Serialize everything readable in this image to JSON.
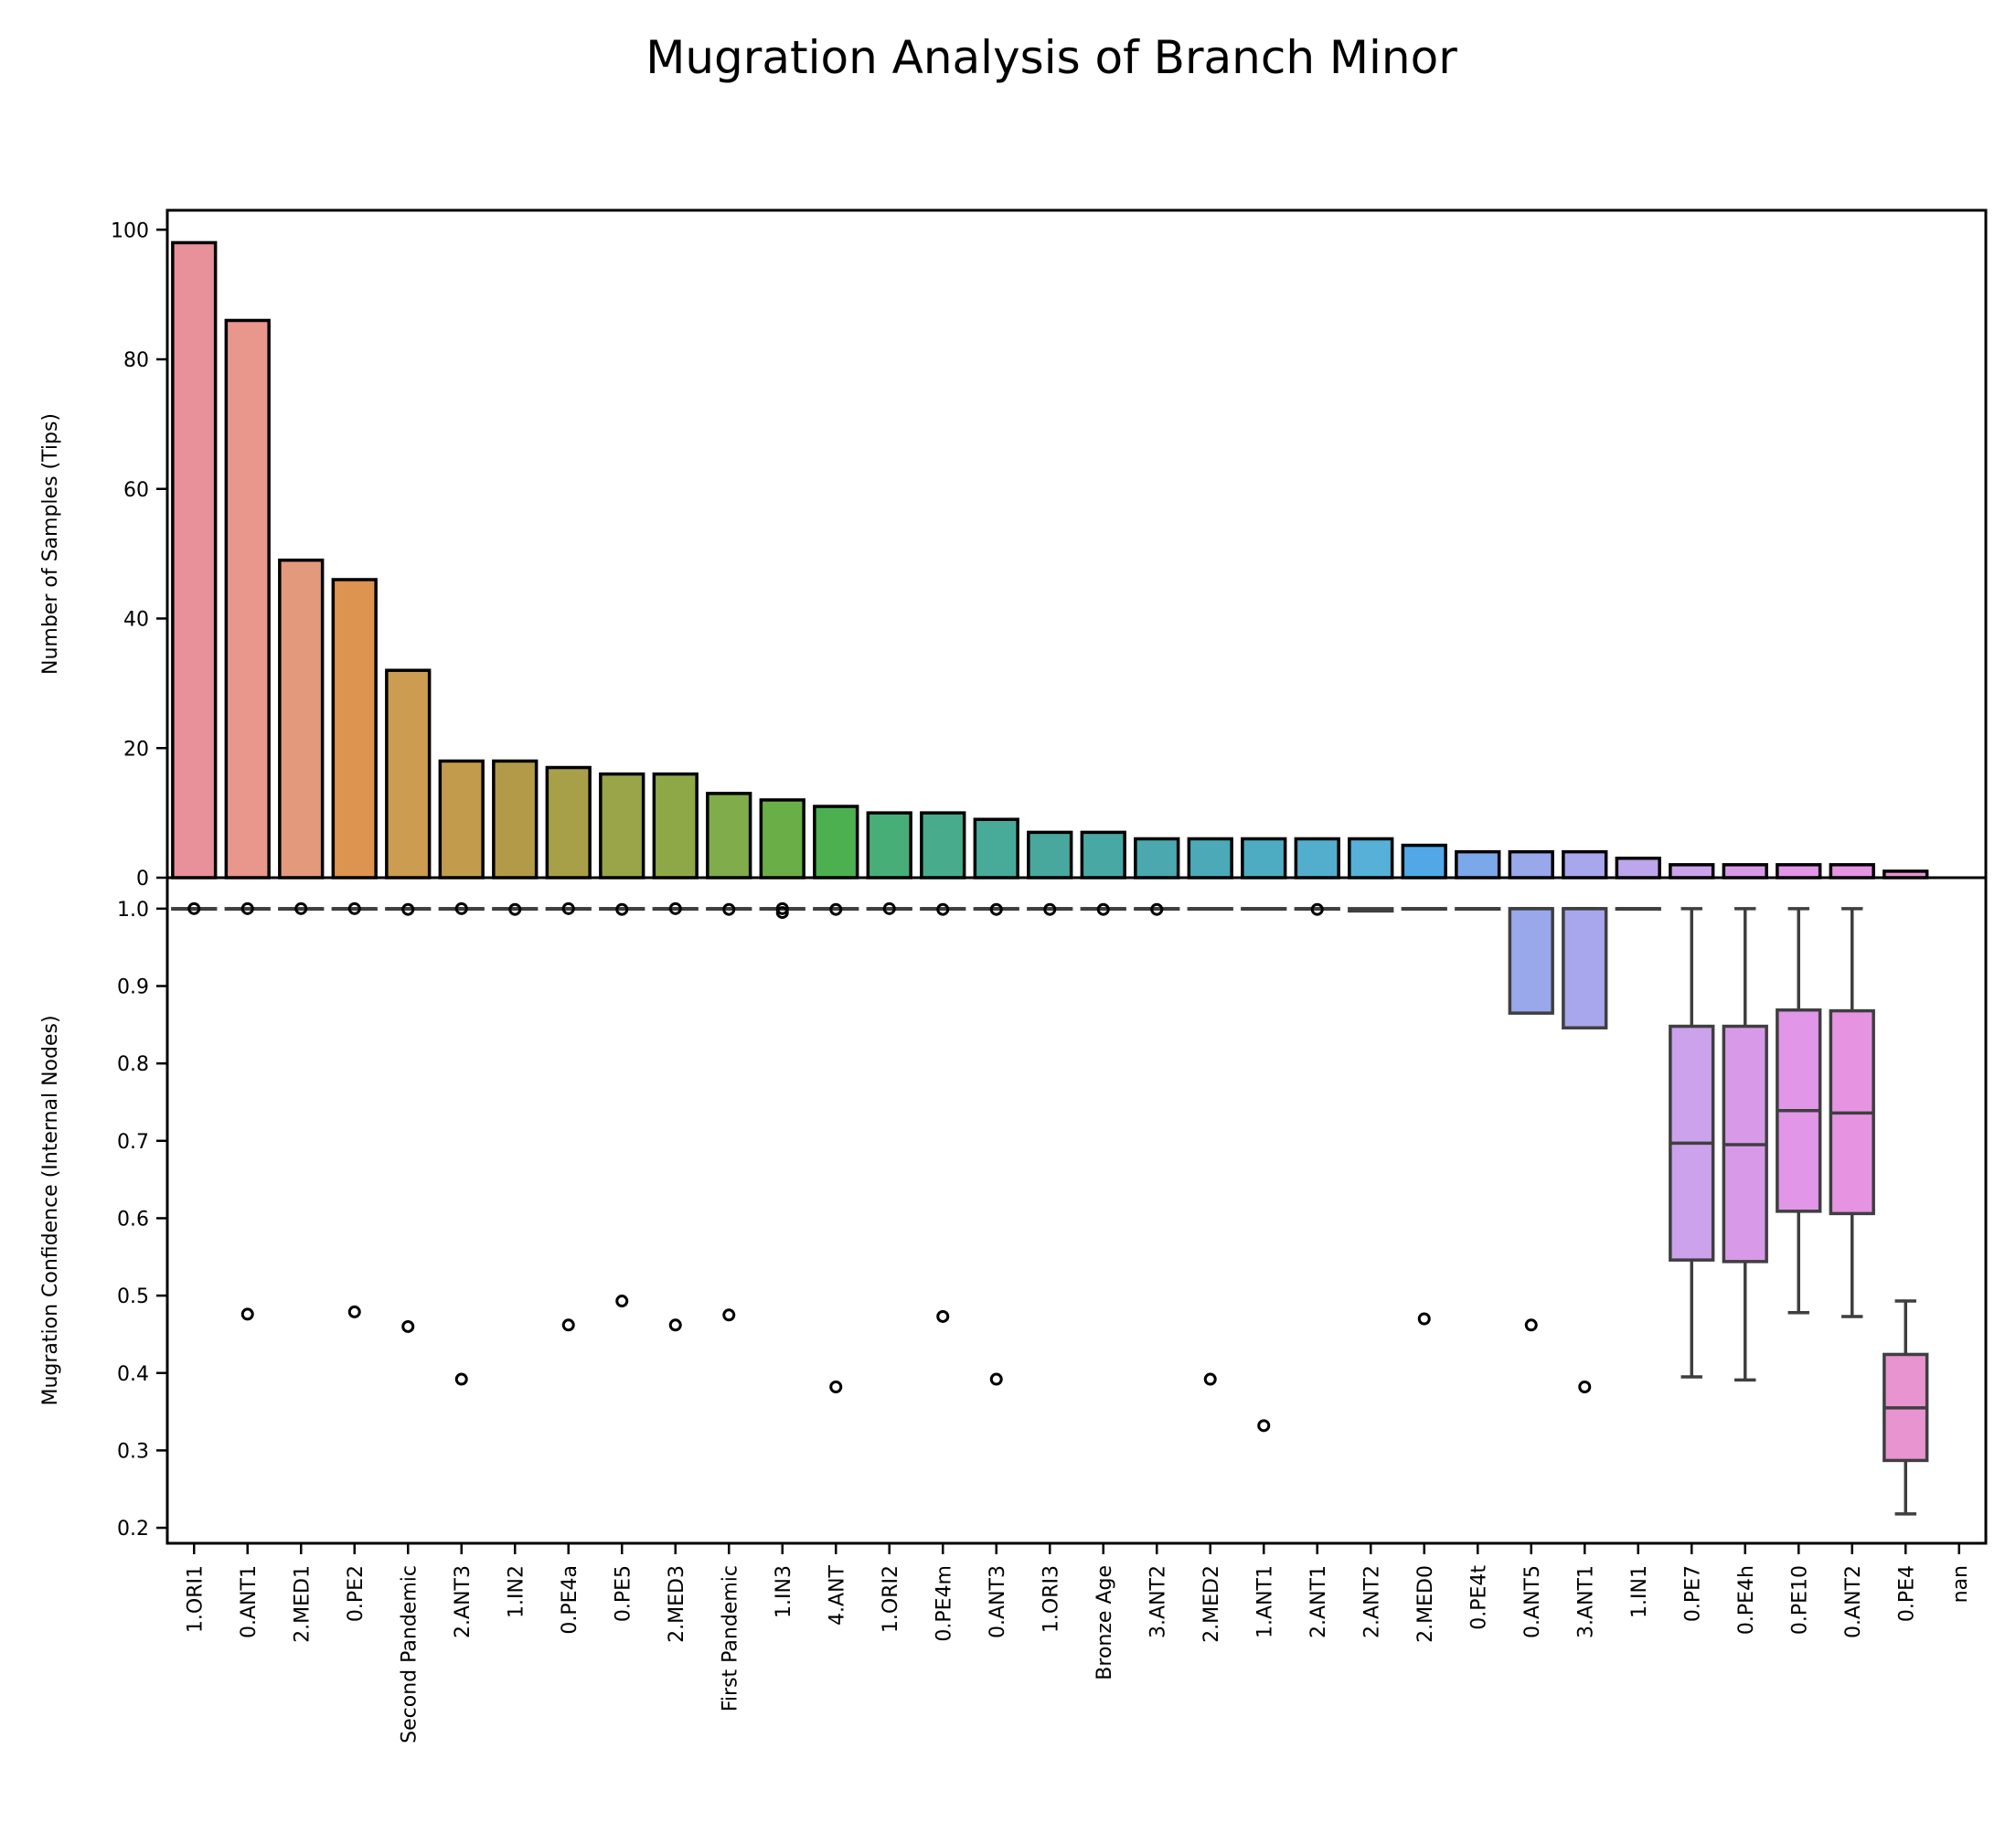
{
  "title": "Mugration Analysis of Branch Minor",
  "chart_data": [
    {
      "type": "bar",
      "ylabel": "Number of Samples (Tips)",
      "ylim": [
        0,
        103
      ],
      "yticks": [
        0,
        20,
        40,
        60,
        80,
        100
      ],
      "categories": [
        "1.ORI1",
        "0.ANT1",
        "2.MED1",
        "0.PE2",
        "Second Pandemic",
        "2.ANT3",
        "1.IN2",
        "0.PE4a",
        "0.PE5",
        "2.MED3",
        "First Pandemic",
        "1.IN3",
        "4.ANT",
        "1.ORI2",
        "0.PE4m",
        "0.ANT3",
        "1.ORI3",
        "Bronze Age",
        "3.ANT2",
        "2.MED2",
        "1.ANT1",
        "2.ANT1",
        "2.ANT2",
        "2.MED0",
        "0.PE4t",
        "0.ANT5",
        "3.ANT1",
        "1.IN1",
        "0.PE7",
        "0.PE4h",
        "0.PE10",
        "0.ANT2",
        "0.PE4",
        "nan"
      ],
      "values": [
        98,
        86,
        49,
        46,
        32,
        18,
        18,
        17,
        16,
        16,
        13,
        12,
        11,
        10,
        10,
        9,
        7,
        7,
        6,
        6,
        6,
        6,
        6,
        5,
        4,
        4,
        4,
        3,
        2,
        2,
        2,
        2,
        1,
        0
      ],
      "colors": [
        "#e8919b",
        "#e9968c",
        "#e39a7c",
        "#dc9450",
        "#cc9c50",
        "#c29c4c",
        "#b29a48",
        "#a8a048",
        "#9aa448",
        "#8ea848",
        "#80ac4c",
        "#6aae48",
        "#4cb050",
        "#48ae78",
        "#48ac8c",
        "#48aa98",
        "#48a89e",
        "#48a8a4",
        "#4aa8ae",
        "#4caab8",
        "#4eacc2",
        "#52aecc",
        "#56b0d8",
        "#52a8e6",
        "#7aa8e8",
        "#98a8ea",
        "#a8a6ec",
        "#bea6ec",
        "#cca2ec",
        "#d89ae8",
        "#e296e8",
        "#e694e2",
        "#e894d0",
        "#e897bc"
      ]
    },
    {
      "type": "box",
      "ylabel": "Mugration Confidence (Internal Nodes)",
      "ylim": [
        0.18,
        1.04
      ],
      "yticks": [
        0.2,
        0.3,
        0.4,
        0.5,
        0.6,
        0.7,
        0.8,
        0.9,
        1.0
      ],
      "boxes": [
        {
          "q1": 1.0,
          "median": 1.0,
          "q3": 1.0,
          "whislo": 1.0,
          "whishi": 1.0,
          "fliers": [
            1.0
          ]
        },
        {
          "q1": 1.0,
          "median": 1.0,
          "q3": 1.0,
          "whislo": 1.0,
          "whishi": 1.0,
          "fliers": [
            1.0,
            0.476
          ]
        },
        {
          "q1": 1.0,
          "median": 1.0,
          "q3": 1.0,
          "whislo": 1.0,
          "whishi": 1.0,
          "fliers": [
            1.0
          ]
        },
        {
          "q1": 1.0,
          "median": 1.0,
          "q3": 1.0,
          "whislo": 1.0,
          "whishi": 1.0,
          "fliers": [
            1.0,
            0.479
          ]
        },
        {
          "q1": 1.0,
          "median": 1.0,
          "q3": 1.0,
          "whislo": 1.0,
          "whishi": 1.0,
          "fliers": [
            0.999,
            0.46
          ]
        },
        {
          "q1": 1.0,
          "median": 1.0,
          "q3": 1.0,
          "whislo": 1.0,
          "whishi": 1.0,
          "fliers": [
            1.0,
            0.392
          ]
        },
        {
          "q1": 1.0,
          "median": 1.0,
          "q3": 1.0,
          "whislo": 1.0,
          "whishi": 1.0,
          "fliers": [
            0.999
          ]
        },
        {
          "q1": 1.0,
          "median": 1.0,
          "q3": 1.0,
          "whislo": 1.0,
          "whishi": 1.0,
          "fliers": [
            1.0,
            0.462
          ]
        },
        {
          "q1": 1.0,
          "median": 1.0,
          "q3": 1.0,
          "whislo": 1.0,
          "whishi": 1.0,
          "fliers": [
            0.999,
            0.493
          ]
        },
        {
          "q1": 1.0,
          "median": 1.0,
          "q3": 1.0,
          "whislo": 1.0,
          "whishi": 1.0,
          "fliers": [
            1.0,
            0.462
          ]
        },
        {
          "q1": 1.0,
          "median": 1.0,
          "q3": 1.0,
          "whislo": 1.0,
          "whishi": 1.0,
          "fliers": [
            0.999,
            0.475
          ]
        },
        {
          "q1": 1.0,
          "median": 1.0,
          "q3": 1.0,
          "whislo": 1.0,
          "whishi": 1.0,
          "fliers": [
            1.0,
            0.995
          ]
        },
        {
          "q1": 1.0,
          "median": 1.0,
          "q3": 1.0,
          "whislo": 1.0,
          "whishi": 1.0,
          "fliers": [
            0.999,
            0.382
          ]
        },
        {
          "q1": 1.0,
          "median": 1.0,
          "q3": 1.0,
          "whislo": 1.0,
          "whishi": 1.0,
          "fliers": [
            1.0
          ]
        },
        {
          "q1": 1.0,
          "median": 1.0,
          "q3": 1.0,
          "whislo": 1.0,
          "whishi": 1.0,
          "fliers": [
            0.999,
            0.473
          ]
        },
        {
          "q1": 1.0,
          "median": 1.0,
          "q3": 1.0,
          "whislo": 1.0,
          "whishi": 1.0,
          "fliers": [
            0.999,
            0.392
          ]
        },
        {
          "q1": 1.0,
          "median": 1.0,
          "q3": 1.0,
          "whislo": 1.0,
          "whishi": 1.0,
          "fliers": [
            0.999
          ]
        },
        {
          "q1": 1.0,
          "median": 1.0,
          "q3": 1.0,
          "whislo": 1.0,
          "whishi": 1.0,
          "fliers": [
            0.999
          ]
        },
        {
          "q1": 1.0,
          "median": 1.0,
          "q3": 1.0,
          "whislo": 1.0,
          "whishi": 1.0,
          "fliers": [
            0.999
          ]
        },
        {
          "q1": 1.0,
          "median": 1.0,
          "q3": 1.0,
          "whislo": 1.0,
          "whishi": 1.0,
          "fliers": [
            0.392
          ]
        },
        {
          "q1": 1.0,
          "median": 1.0,
          "q3": 1.0,
          "whislo": 1.0,
          "whishi": 1.0,
          "fliers": [
            0.332
          ]
        },
        {
          "q1": 1.0,
          "median": 1.0,
          "q3": 1.0,
          "whislo": 1.0,
          "whishi": 1.0,
          "fliers": [
            0.999
          ]
        },
        {
          "q1": 0.997,
          "median": 0.998,
          "q3": 1.0,
          "whislo": 0.997,
          "whishi": 1.0,
          "fliers": []
        },
        {
          "q1": 1.0,
          "median": 1.0,
          "q3": 1.0,
          "whislo": 1.0,
          "whishi": 1.0,
          "fliers": [
            0.47
          ]
        },
        {
          "q1": 1.0,
          "median": 1.0,
          "q3": 1.0,
          "whislo": 1.0,
          "whishi": 1.0,
          "fliers": []
        },
        {
          "q1": 0.865,
          "median": 1.0,
          "q3": 1.0,
          "whislo": 0.865,
          "whishi": 1.0,
          "fliers": [
            0.462
          ]
        },
        {
          "q1": 0.846,
          "median": 1.0,
          "q3": 1.0,
          "whislo": 0.846,
          "whishi": 1.0,
          "fliers": [
            0.382
          ]
        },
        {
          "q1": 1.0,
          "median": 1.0,
          "q3": 1.0,
          "whislo": 1.0,
          "whishi": 1.0,
          "fliers": []
        },
        {
          "q1": 0.546,
          "median": 0.697,
          "q3": 0.848,
          "whislo": 0.395,
          "whishi": 1.0,
          "fliers": []
        },
        {
          "q1": 0.544,
          "median": 0.695,
          "q3": 0.848,
          "whislo": 0.391,
          "whishi": 1.0,
          "fliers": []
        },
        {
          "q1": 0.609,
          "median": 0.739,
          "q3": 0.869,
          "whislo": 0.478,
          "whishi": 1.0,
          "fliers": []
        },
        {
          "q1": 0.606,
          "median": 0.736,
          "q3": 0.868,
          "whislo": 0.473,
          "whishi": 1.0,
          "fliers": []
        },
        {
          "q1": 0.287,
          "median": 0.355,
          "q3": 0.424,
          "whislo": 0.218,
          "whishi": 0.493,
          "fliers": []
        },
        null
      ]
    }
  ]
}
